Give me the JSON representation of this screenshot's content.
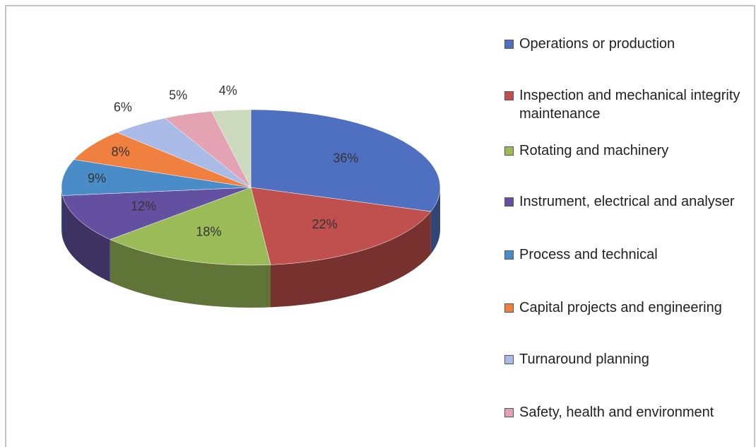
{
  "chart_data": {
    "type": "pie3d",
    "categories": [
      "Operations or production",
      "Inspection and mechanical integrity maintenance",
      "Rotating and machinery",
      "Instrument, electrical and analyser",
      "Process and technical",
      "Capital projects and engineering",
      "Turnaround planning",
      "Safety, health and environment",
      null
    ],
    "values": [
      36,
      22,
      18,
      12,
      9,
      8,
      6,
      5,
      4
    ],
    "colors": [
      "#4f6fc0",
      "#c0504d",
      "#9bbb59",
      "#6450a0",
      "#4a8cc8",
      "#f08040",
      "#a9bbe6",
      "#e3a3b3",
      "#cbd9bd"
    ],
    "legend": "right"
  }
}
